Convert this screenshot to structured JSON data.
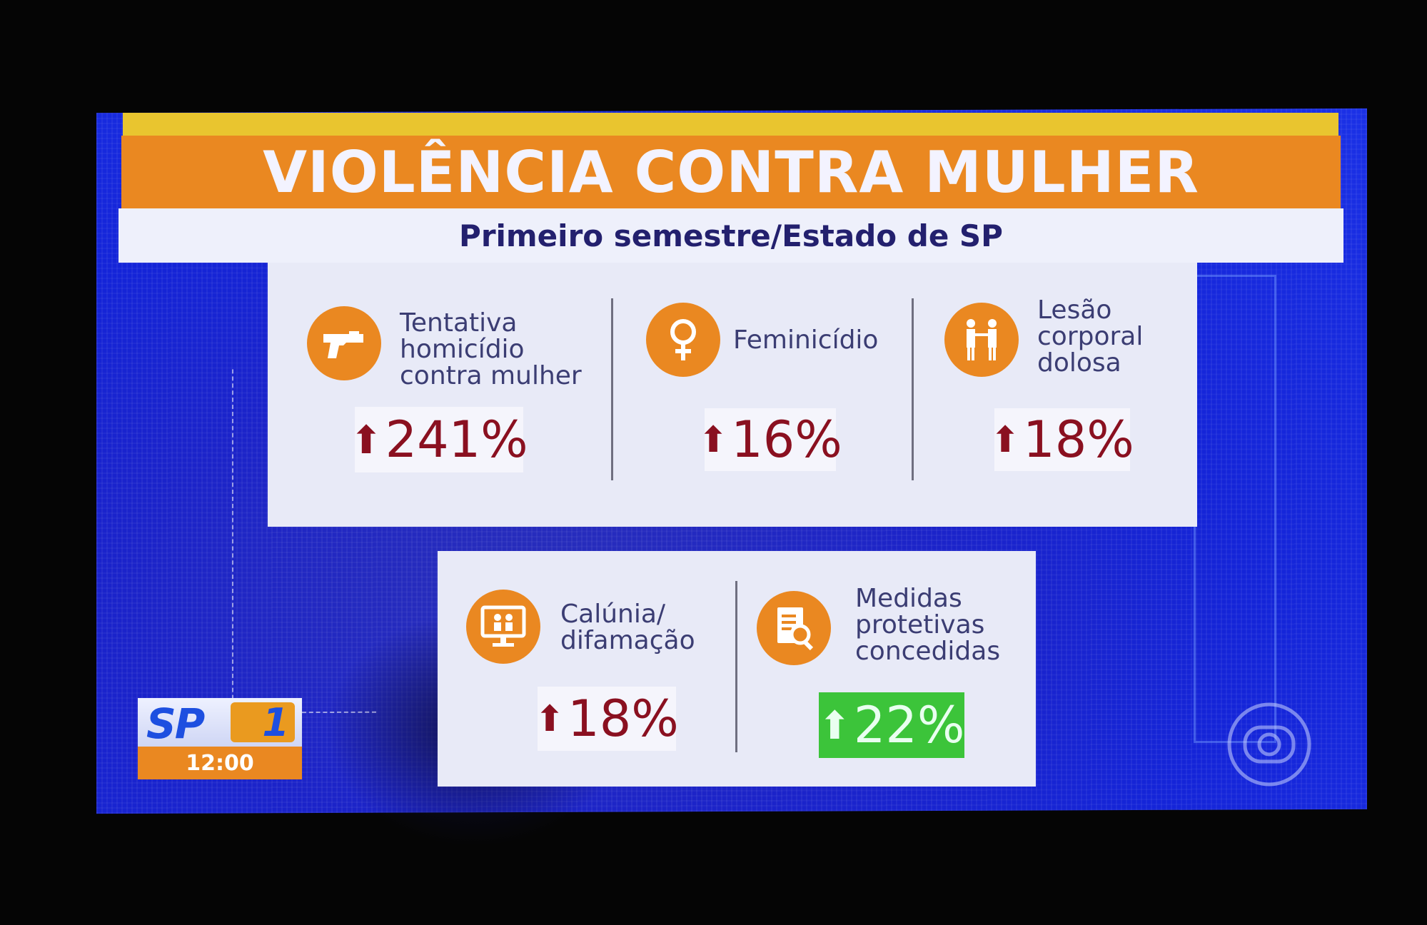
{
  "header": {
    "title": "VIOLÊNCIA CONTRA MULHER",
    "subtitle": "Primeiro semestre/Estado de SP"
  },
  "colors": {
    "orange": "#ea8821",
    "yellow": "#e9c52f",
    "navy_text": "#23206e",
    "increase_red": "#8a1020",
    "highlight_green": "#3cc43a",
    "background_blue": "#1b23c9"
  },
  "stats": [
    {
      "icon": "gun-icon",
      "label": "Tentativa\nhomicídio\ncontra mulher",
      "arrow": "⬆",
      "value": "241%"
    },
    {
      "icon": "female-symbol-icon",
      "label": "Feminicídio",
      "arrow": "⬆",
      "value": "16%"
    },
    {
      "icon": "assault-people-icon",
      "label": "Lesão\ncorporal\ndolosa",
      "arrow": "⬆",
      "value": "18%"
    },
    {
      "icon": "computer-screen-icon",
      "label": "Calúnia/\ndifamação",
      "arrow": "⬆",
      "value": "18%"
    },
    {
      "icon": "document-search-icon",
      "label": "Medidas\nprotetivas\nconcedidas",
      "arrow": "⬆",
      "value": "22%"
    }
  ],
  "broadcast": {
    "program_logo": "SP1",
    "program_letters": "SP",
    "program_number": "1",
    "time": "12:00",
    "watermark_icon": "tv-globo-icon"
  }
}
